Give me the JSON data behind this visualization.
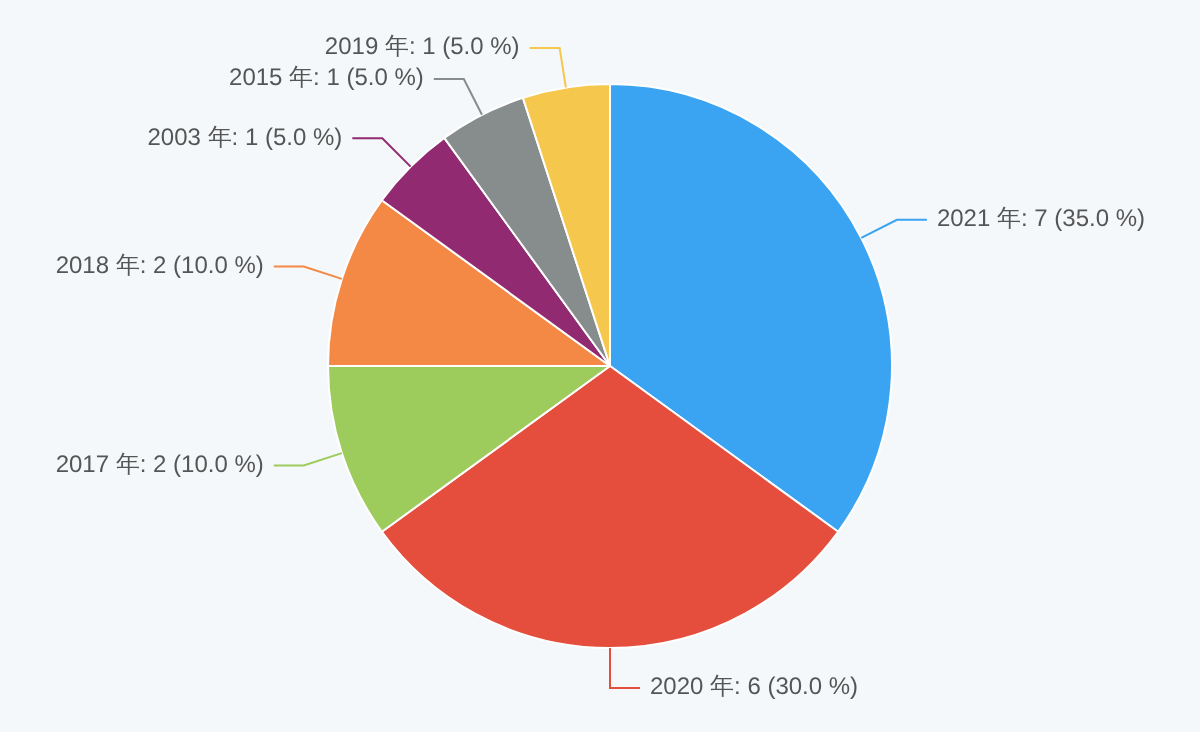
{
  "chart_data": {
    "type": "pie",
    "categories": [
      "2021 年",
      "2020 年",
      "2017 年",
      "2018 年",
      "2003 年",
      "2015 年",
      "2019 年"
    ],
    "values": [
      7,
      6,
      2,
      2,
      1,
      1,
      1
    ],
    "value_labels": [
      "7 (35.0 %)",
      "6 (30.0 %)",
      "2 (10.0 %)",
      "2 (10.0 %)",
      "1 (5.0 %)",
      "1 (5.0 %)",
      "1 (5.0 %)"
    ],
    "colors": [
      "#3aa3f2",
      "#e54e3c",
      "#9dcb5c",
      "#f48845",
      "#912a70",
      "#878c8c",
      "#f5c84d"
    ]
  }
}
